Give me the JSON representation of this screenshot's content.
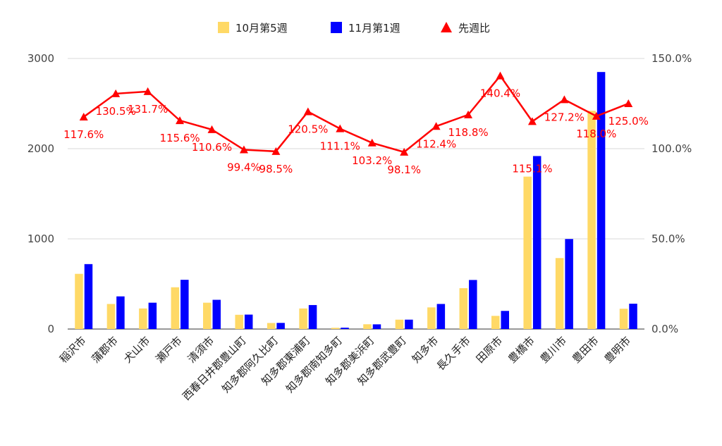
{
  "chart_data": {
    "type": "bar",
    "title": "",
    "legend": {
      "placement": "top",
      "items": [
        {
          "label": "10月第5週",
          "marker": "square",
          "color": "#ffd966"
        },
        {
          "label": "11月第1週",
          "marker": "square",
          "color": "#0000ff"
        },
        {
          "label": "先週比",
          "marker": "triangle",
          "color": "#ff0000"
        }
      ]
    },
    "categories": [
      "稲沢市",
      "蒲郡市",
      "犬山市",
      "瀬戸市",
      "清須市",
      "西春日井郡豊山町",
      "知多郡阿久比町",
      "知多郡東浦町",
      "知多郡南知多町",
      "知多郡美浜町",
      "知多郡武豊町",
      "知多市",
      "長久手市",
      "田原市",
      "豊橋市",
      "豊川市",
      "豊田市",
      "豊明市"
    ],
    "series": [
      {
        "name": "10月第5週",
        "type": "bar",
        "axis": "left",
        "color": "#ffd966",
        "values": [
          612,
          278,
          228,
          463,
          292,
          158,
          67,
          228,
          14,
          53,
          104,
          240,
          453,
          146,
          1690,
          787,
          2420,
          225
        ]
      },
      {
        "name": "11月第1週",
        "type": "bar",
        "axis": "left",
        "color": "#0000ff",
        "values": [
          720,
          362,
          292,
          546,
          324,
          160,
          68,
          266,
          15,
          52,
          104,
          278,
          544,
          201,
          1918,
          998,
          2850,
          281
        ]
      },
      {
        "name": "先週比",
        "type": "line",
        "axis": "right",
        "color": "#ff0000",
        "values": [
          117.6,
          130.5,
          131.7,
          115.6,
          110.6,
          99.4,
          98.5,
          120.5,
          111.1,
          103.2,
          98.1,
          112.4,
          118.8,
          140.4,
          115.1,
          127.2,
          118.0,
          125.0
        ],
        "data_labels": [
          "117.6%",
          "130.5%",
          "131.7%",
          "115.6%",
          "110.6%",
          "99.4%",
          "98.5%",
          "120.5%",
          "111.1%",
          "103.2%",
          "98.1%",
          "112.4%",
          "118.8%",
          "140.4%",
          "115.1%",
          "127.2%",
          "118.0%",
          "125.0%"
        ]
      }
    ],
    "y_left": {
      "min": 0,
      "max": 3000,
      "ticks": [
        "0",
        "1000",
        "2000",
        "3000"
      ]
    },
    "y_right": {
      "min": 0,
      "max": 150,
      "ticks": [
        "0.0%",
        "50.0%",
        "100.0%",
        "150.0%"
      ]
    },
    "grid": true
  }
}
